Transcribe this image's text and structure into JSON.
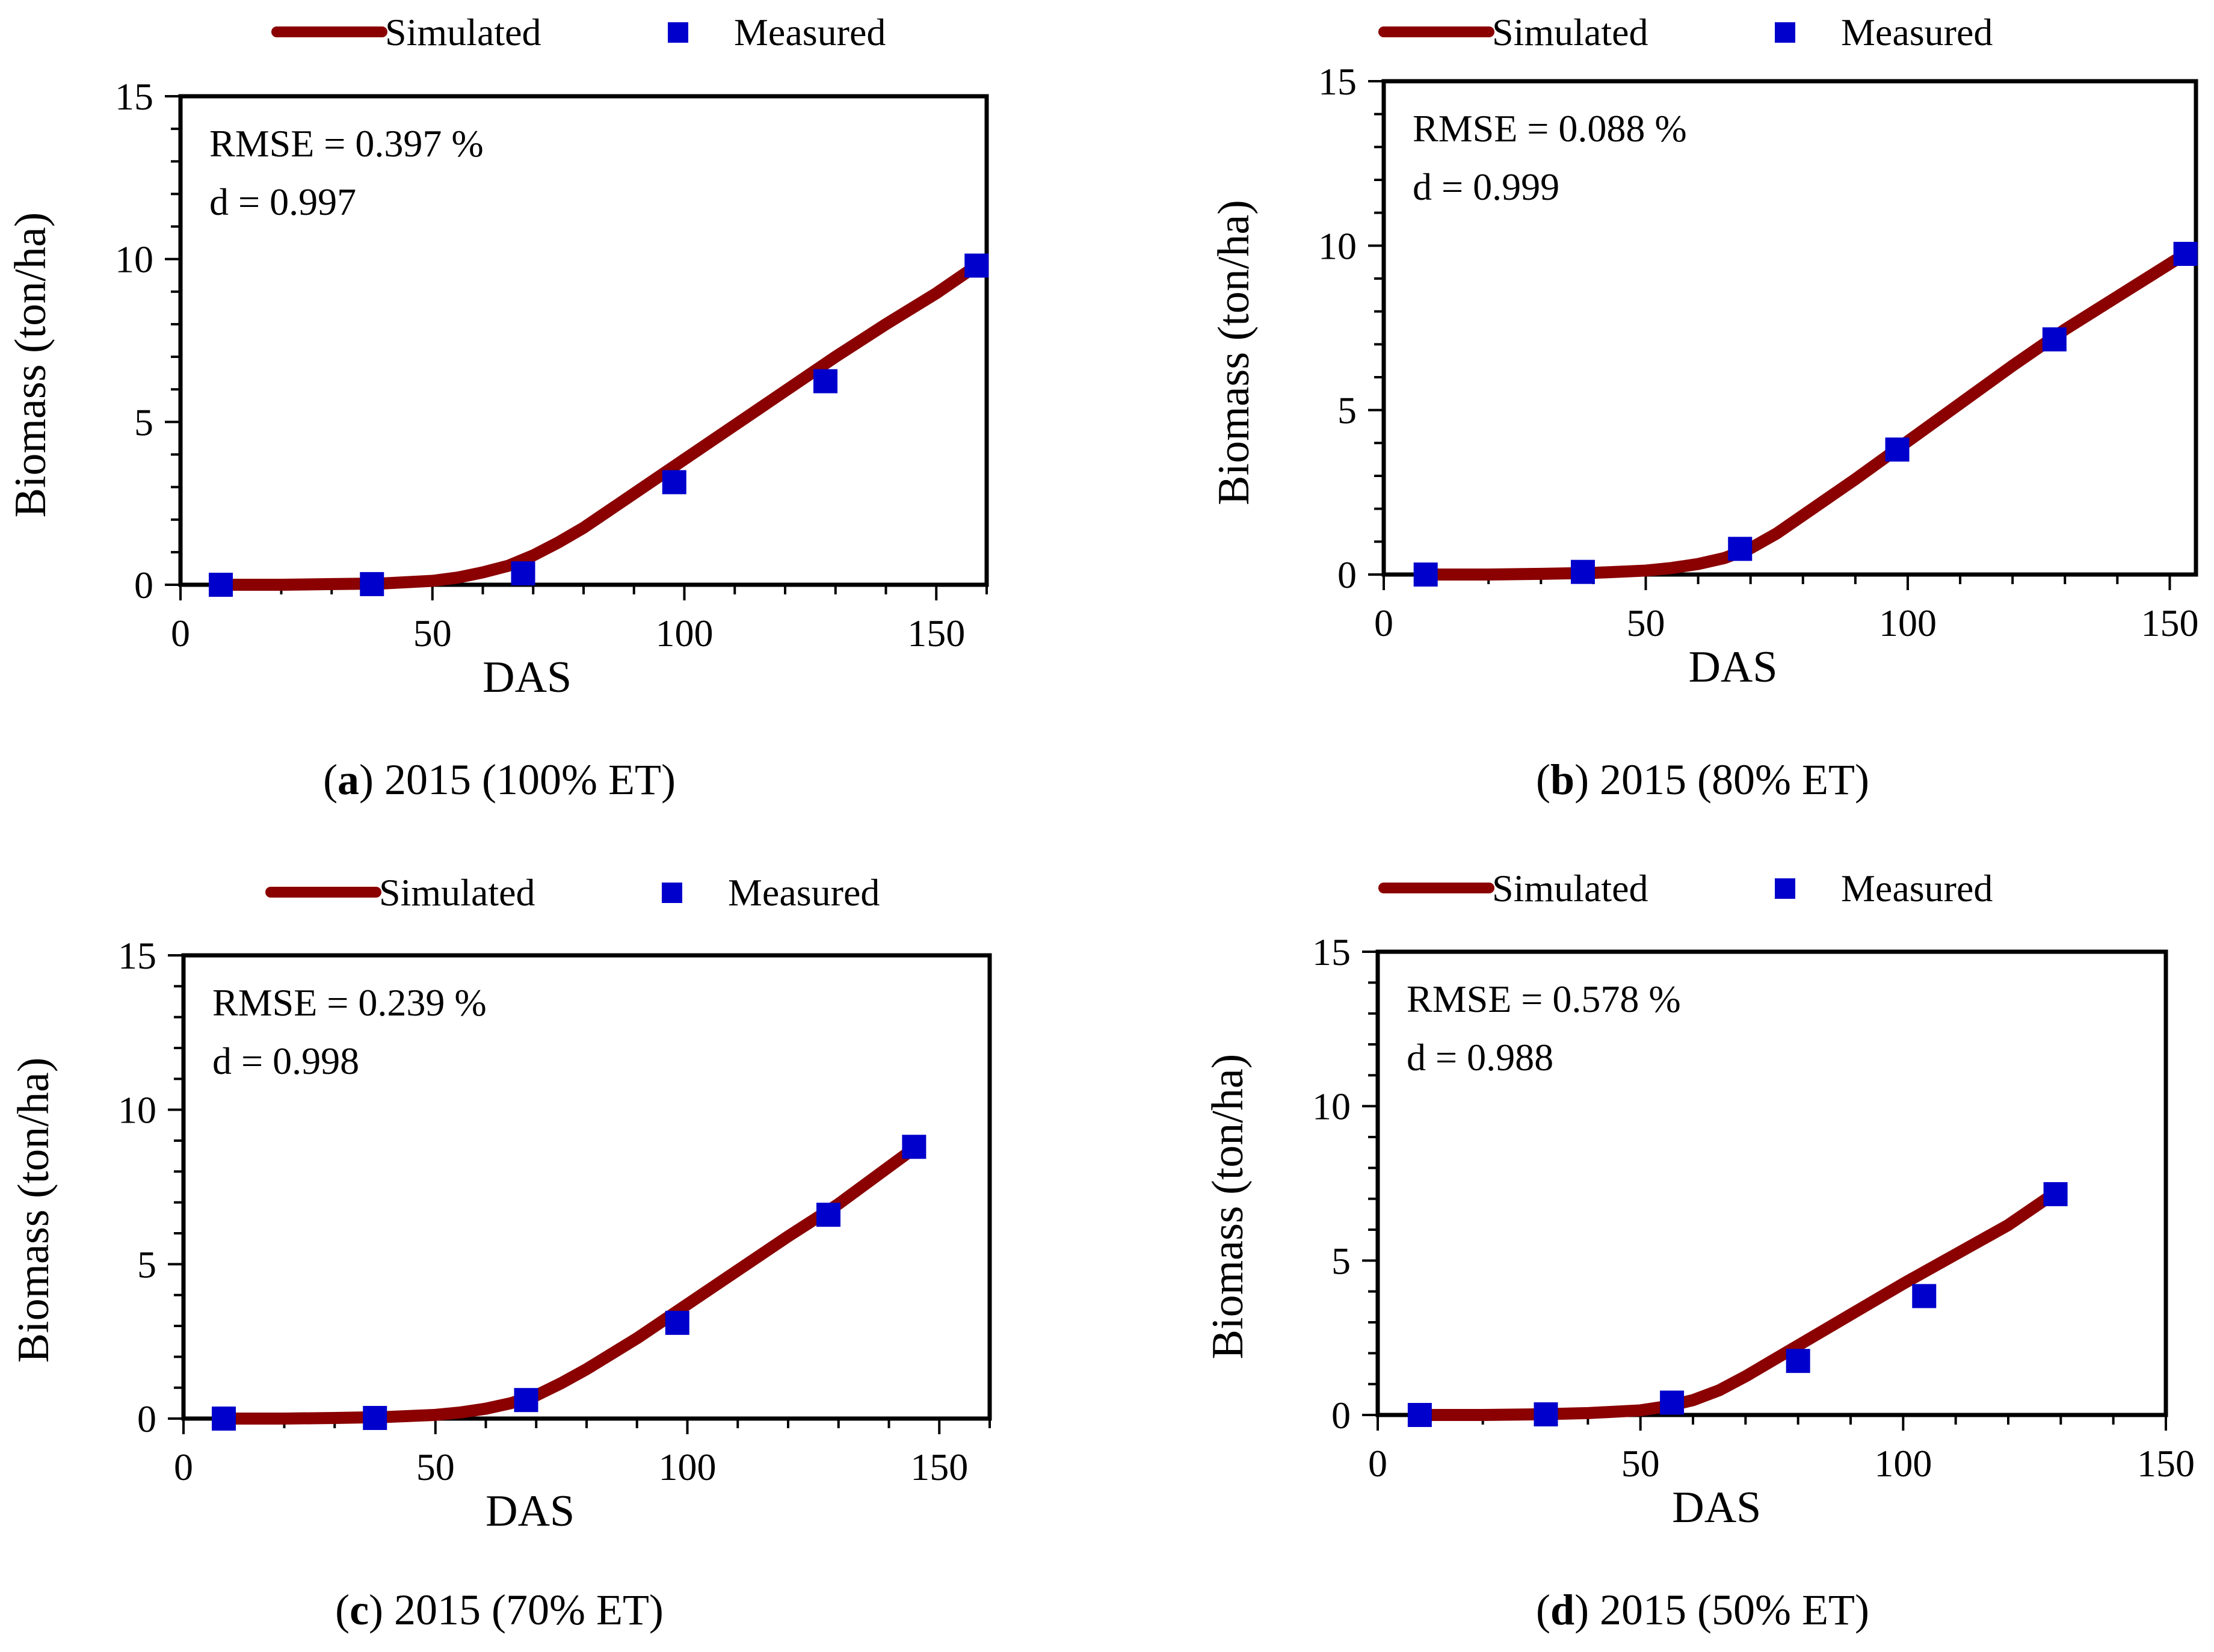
{
  "chart_data": [
    {
      "type": "line",
      "panel": "a",
      "caption_letter": "a",
      "caption_text": "2015 (100% ET)",
      "xlabel": "DAS",
      "ylabel": "Biomass (ton/ha)",
      "xlim": [
        0,
        160
      ],
      "ylim": [
        0,
        15
      ],
      "xticks": [
        0,
        50,
        100,
        150
      ],
      "yticks": [
        0,
        5,
        10,
        15
      ],
      "legend": {
        "simulated": "Simulated",
        "measured": "Measured",
        "placement": "top-center, outside"
      },
      "stats": {
        "rmse": "RMSE = 0.397 %",
        "d": "d = 0.997"
      },
      "series": [
        {
          "name": "Simulated",
          "kind": "line",
          "color": "#8b0000",
          "x": [
            8,
            20,
            30,
            40,
            50,
            55,
            60,
            65,
            70,
            75,
            80,
            90,
            100,
            110,
            120,
            130,
            140,
            150,
            158
          ],
          "y": [
            0,
            0,
            0.02,
            0.04,
            0.12,
            0.22,
            0.38,
            0.58,
            0.9,
            1.3,
            1.75,
            2.8,
            3.85,
            4.9,
            5.95,
            7.0,
            8.0,
            8.95,
            9.8
          ]
        },
        {
          "name": "Measured",
          "kind": "scatter",
          "color": "#0000cc",
          "x": [
            8,
            38,
            68,
            98,
            128,
            158
          ],
          "y": [
            0.0,
            0.02,
            0.35,
            3.15,
            6.25,
            9.8
          ]
        }
      ]
    },
    {
      "type": "line",
      "panel": "b",
      "caption_letter": "b",
      "caption_text": "2015 (80% ET)",
      "xlabel": "DAS",
      "ylabel": "Biomass (ton/ha)",
      "xlim": [
        0,
        155
      ],
      "ylim": [
        0,
        15
      ],
      "xticks": [
        0,
        50,
        100,
        150
      ],
      "yticks": [
        0,
        5,
        10,
        15
      ],
      "legend": {
        "simulated": "Simulated",
        "measured": "Measured",
        "placement": "top-center, outside"
      },
      "stats": {
        "rmse": "RMSE = 0.088 %",
        "d": "d = 0.999"
      },
      "series": [
        {
          "name": "Simulated",
          "kind": "line",
          "color": "#8b0000",
          "x": [
            8,
            20,
            30,
            40,
            50,
            55,
            60,
            65,
            70,
            75,
            80,
            90,
            100,
            110,
            120,
            130,
            140,
            153
          ],
          "y": [
            0,
            0,
            0.02,
            0.05,
            0.12,
            0.2,
            0.32,
            0.5,
            0.8,
            1.25,
            1.8,
            2.9,
            4.05,
            5.2,
            6.35,
            7.45,
            8.45,
            9.75
          ]
        },
        {
          "name": "Measured",
          "kind": "scatter",
          "color": "#0000cc",
          "x": [
            8,
            38,
            68,
            98,
            128,
            153
          ],
          "y": [
            0.0,
            0.08,
            0.78,
            3.8,
            7.15,
            9.75
          ]
        }
      ]
    },
    {
      "type": "line",
      "panel": "c",
      "caption_letter": "c",
      "caption_text": "2015 (70% ET)",
      "xlabel": "DAS",
      "ylabel": "Biomass (ton/ha)",
      "xlim": [
        0,
        160
      ],
      "ylim": [
        0,
        15
      ],
      "xticks": [
        0,
        50,
        100,
        150
      ],
      "yticks": [
        0,
        5,
        10,
        15
      ],
      "legend": {
        "simulated": "Simulated",
        "measured": "Measured",
        "placement": "top-center, outside"
      },
      "stats": {
        "rmse": "RMSE = 0.239 %",
        "d": "d = 0.998"
      },
      "series": [
        {
          "name": "Simulated",
          "kind": "line",
          "color": "#8b0000",
          "x": [
            8,
            20,
            30,
            40,
            50,
            55,
            60,
            65,
            70,
            75,
            80,
            90,
            100,
            110,
            120,
            130,
            145
          ],
          "y": [
            0,
            0,
            0.02,
            0.05,
            0.12,
            0.2,
            0.32,
            0.5,
            0.75,
            1.15,
            1.6,
            2.6,
            3.7,
            4.8,
            5.9,
            6.95,
            8.75
          ]
        },
        {
          "name": "Measured",
          "kind": "scatter",
          "color": "#0000cc",
          "x": [
            8,
            38,
            68,
            98,
            128,
            145
          ],
          "y": [
            0.0,
            0.02,
            0.6,
            3.1,
            6.6,
            8.8
          ]
        }
      ]
    },
    {
      "type": "line",
      "panel": "d",
      "caption_letter": "d",
      "caption_text": "2015 (50% ET)",
      "xlabel": "DAS",
      "ylabel": "Biomass (ton/ha)",
      "xlim": [
        0,
        150
      ],
      "ylim": [
        0,
        15
      ],
      "xticks": [
        0,
        50,
        100,
        150
      ],
      "yticks": [
        0,
        5,
        10,
        15
      ],
      "legend": {
        "simulated": "Simulated",
        "measured": "Measured",
        "placement": "top-center, outside"
      },
      "stats": {
        "rmse": "RMSE = 0.578 %",
        "d": "d = 0.988"
      },
      "series": [
        {
          "name": "Simulated",
          "kind": "line",
          "color": "#8b0000",
          "x": [
            8,
            20,
            30,
            40,
            50,
            55,
            60,
            65,
            70,
            80,
            90,
            100,
            110,
            120,
            129
          ],
          "y": [
            0,
            0,
            0.02,
            0.06,
            0.15,
            0.28,
            0.48,
            0.8,
            1.25,
            2.25,
            3.25,
            4.25,
            5.2,
            6.15,
            7.2
          ]
        },
        {
          "name": "Measured",
          "kind": "scatter",
          "color": "#0000cc",
          "x": [
            8,
            32,
            56,
            80,
            104,
            129
          ],
          "y": [
            0.0,
            0.02,
            0.4,
            1.75,
            3.85,
            7.15
          ]
        }
      ]
    }
  ]
}
